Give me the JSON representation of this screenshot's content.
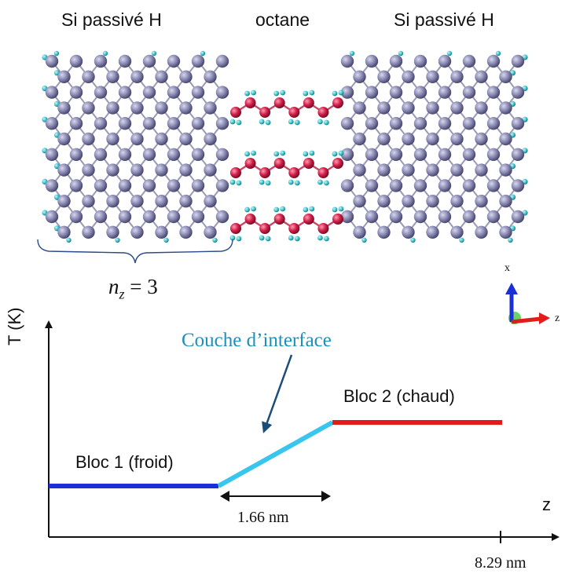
{
  "top_labels": {
    "left": "Si passivé H",
    "middle": "octane",
    "right": "Si passivé H"
  },
  "nz_label": {
    "var": "n",
    "sub": "z",
    "rest": " = 3"
  },
  "axes_inset": {
    "x_label": "x",
    "z_label": "z"
  },
  "plot": {
    "y_label": "T (K)",
    "x_label": "z",
    "interface_label": "Couche d’interface",
    "bloc1_label": "Bloc 1 (froid)",
    "bloc2_label": "Bloc 2 (chaud)",
    "width_label": "1.66 nm",
    "end_tick_label": "8.29 nm"
  },
  "colors": {
    "si_atom": "#8888b0",
    "h_atom": "#3fc4cc",
    "c_atom": "#d21f4a",
    "bloc1": "#1a2fd6",
    "bloc2": "#e21b1b",
    "interface": "#38c6ee",
    "interface_text": "#1e8fb8",
    "arrow_dark": "#1b4d7a",
    "brace": "#2b4a8a"
  }
}
